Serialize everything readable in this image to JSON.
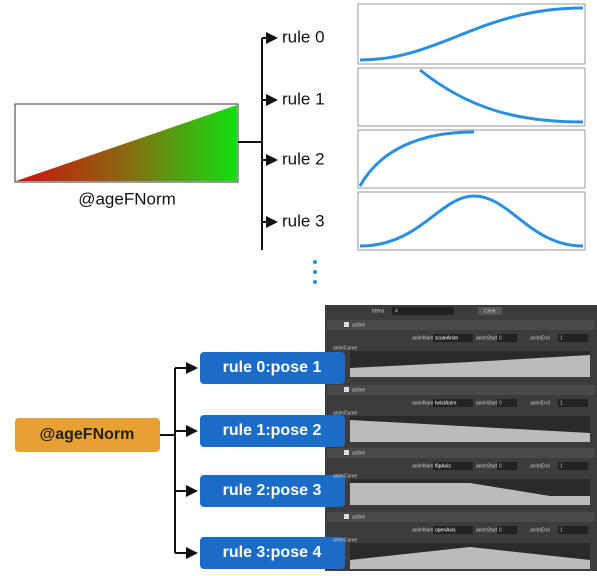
{
  "top": {
    "label": "@ageFNorm",
    "rules": [
      "rule 0",
      "rule 1",
      "rule 2",
      "rule 3"
    ]
  },
  "bottom": {
    "label": "@ageFNorm",
    "rules": [
      "rule 0:pose 1",
      "rule 1:pose 2",
      "rule 2:pose 3",
      "rule 3:pose 4"
    ]
  },
  "panel": {
    "items_label": "Items",
    "items_value": 4,
    "clear": "Clear",
    "rows": [
      {
        "active": "active",
        "name_label": "animName",
        "name": "scaleAnim",
        "start_label": "animStart",
        "start": 0,
        "end_label": "animEnd",
        "end": 1,
        "curve_label": "animCurve"
      },
      {
        "active": "active",
        "name_label": "animName",
        "name": "twistAnim",
        "start_label": "animStart",
        "start": 0,
        "end_label": "animEnd",
        "end": 1,
        "curve_label": "animCurve"
      },
      {
        "active": "active",
        "name_label": "animName",
        "name": "flipAxis",
        "start_label": "animStart",
        "start": 0,
        "end_label": "animEnd",
        "end": 1,
        "curve_label": "animCurve"
      },
      {
        "active": "active",
        "name_label": "animName",
        "name": "openAxis",
        "start_label": "animStart",
        "start": 0,
        "end_label": "animEnd",
        "end": 1,
        "curve_label": "animCurve"
      }
    ]
  }
}
